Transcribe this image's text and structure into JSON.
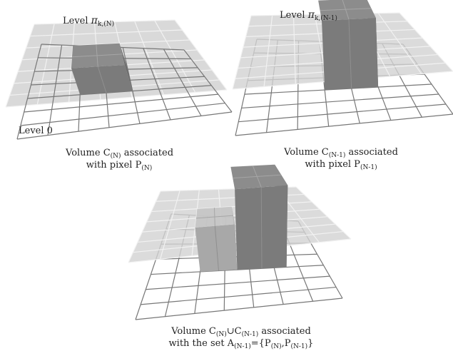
{
  "panels": [
    {
      "level_word": "Level",
      "level_symbol": "π",
      "level_subscript": "k,(N)",
      "ground_label": "Level 0",
      "caption": {
        "line1_pre": "Volume C",
        "line1_sub": "(N)",
        "line1_post": " associated",
        "line2_pre": "with pixel P",
        "line2_sub": "(N)"
      }
    },
    {
      "level_word": "Level",
      "level_symbol": "π",
      "level_subscript": "k,(N-1)",
      "caption": {
        "line1_pre": "Volume C",
        "line1_sub": "(N-1)",
        "line1_post": " associated",
        "line2_pre": "with pixel P",
        "line2_sub": "(N-1)"
      }
    },
    {
      "caption": {
        "line1_a": "Volume C",
        "line1_a_sub": "(N)",
        "line1_union": "∪",
        "line1_b": "C",
        "line1_b_sub": "(N-1)",
        "line1_post": " associated",
        "line2_a": "with the set A",
        "line2_a_sub": "(N-1)",
        "line2_b": "={P",
        "line2_b_sub": "(N)",
        "line2_c": ",P",
        "line2_c_sub": "(N-1)",
        "line2_d": "}"
      }
    }
  ],
  "colors": {
    "plane_fill": "#d2d2d2",
    "plane_grid": "#f2f2f2",
    "ground_grid": "#777777",
    "box_top": "#8c8c8c",
    "box_front": "#7b7b7b",
    "box_side": "#6e6e6e",
    "box_light_top": "#c4c4c4",
    "box_light_front": "#a8a8a8"
  }
}
